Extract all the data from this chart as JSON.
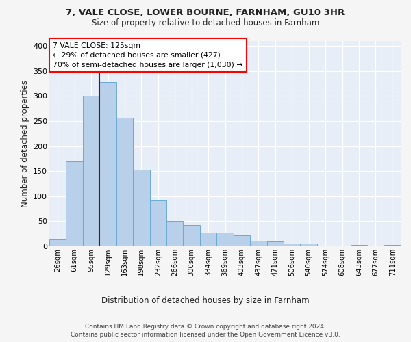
{
  "title1": "7, VALE CLOSE, LOWER BOURNE, FARNHAM, GU10 3HR",
  "title2": "Size of property relative to detached houses in Farnham",
  "xlabel": "Distribution of detached houses by size in Farnham",
  "ylabel": "Number of detached properties",
  "categories": [
    "26sqm",
    "61sqm",
    "95sqm",
    "129sqm",
    "163sqm",
    "198sqm",
    "232sqm",
    "266sqm",
    "300sqm",
    "334sqm",
    "369sqm",
    "403sqm",
    "437sqm",
    "471sqm",
    "506sqm",
    "540sqm",
    "574sqm",
    "608sqm",
    "643sqm",
    "677sqm",
    "711sqm"
  ],
  "values": [
    13,
    170,
    300,
    328,
    257,
    153,
    92,
    50,
    43,
    28,
    28,
    22,
    11,
    10,
    5,
    5,
    2,
    1,
    3,
    1,
    3
  ],
  "bar_color": "#b8d0ea",
  "bar_edge_color": "#6aaad4",
  "annotation_text": "7 VALE CLOSE: 125sqm\n← 29% of detached houses are smaller (427)\n70% of semi-detached houses are larger (1,030) →",
  "red_line_x": 2.5,
  "ylim": [
    0,
    410
  ],
  "yticks": [
    0,
    50,
    100,
    150,
    200,
    250,
    300,
    350,
    400
  ],
  "footer": "Contains HM Land Registry data © Crown copyright and database right 2024.\nContains public sector information licensed under the Open Government Licence v3.0.",
  "fig_bg_color": "#f5f5f5",
  "plot_bg_color": "#e8eef8",
  "grid_color": "#ffffff"
}
